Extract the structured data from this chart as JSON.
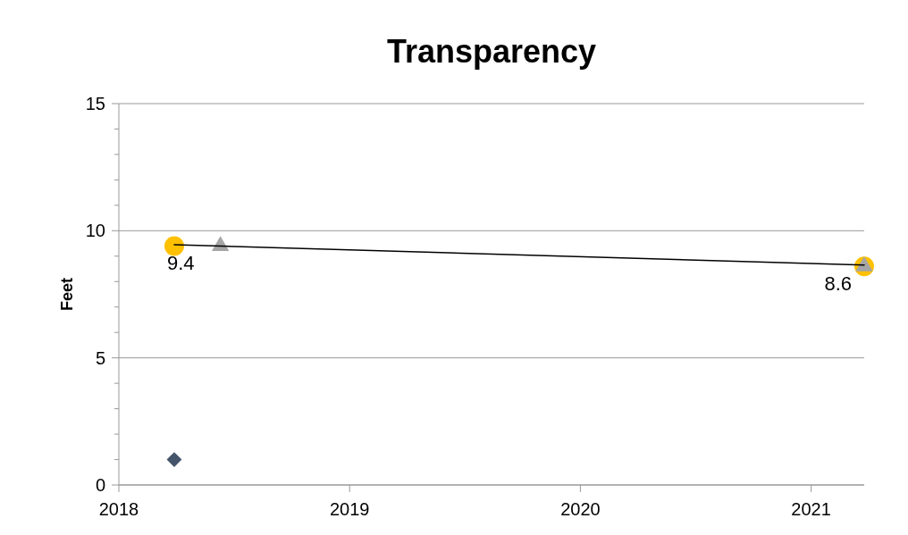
{
  "chart_data": {
    "type": "scatter",
    "title": "Transparency",
    "ylabel": "Feet",
    "xlim": [
      2018,
      2021.23
    ],
    "xticks": [
      2018,
      2019,
      2020,
      2021
    ],
    "ylim": [
      0,
      15
    ],
    "yticks": [
      0,
      5,
      10,
      15
    ],
    "grid": "y",
    "series": [
      {
        "marker": "diamond",
        "color": "#44546a",
        "x": [
          2018.24
        ],
        "values": [
          1.0
        ]
      },
      {
        "marker": "circle",
        "color": "#ffc000",
        "x": [
          2018.24,
          2021.23
        ],
        "values": [
          9.4,
          8.6
        ],
        "value_labels": [
          "9.4",
          "8.6"
        ]
      },
      {
        "marker": "triangle",
        "color": "#a5a5a5",
        "x": [
          2018.44,
          2021.23
        ],
        "values": [
          9.4,
          8.6
        ]
      },
      {
        "type": "line",
        "marker": "none",
        "color": "#000000",
        "x": [
          2018.24,
          2021.23
        ],
        "values": [
          9.45,
          8.65
        ]
      }
    ]
  }
}
